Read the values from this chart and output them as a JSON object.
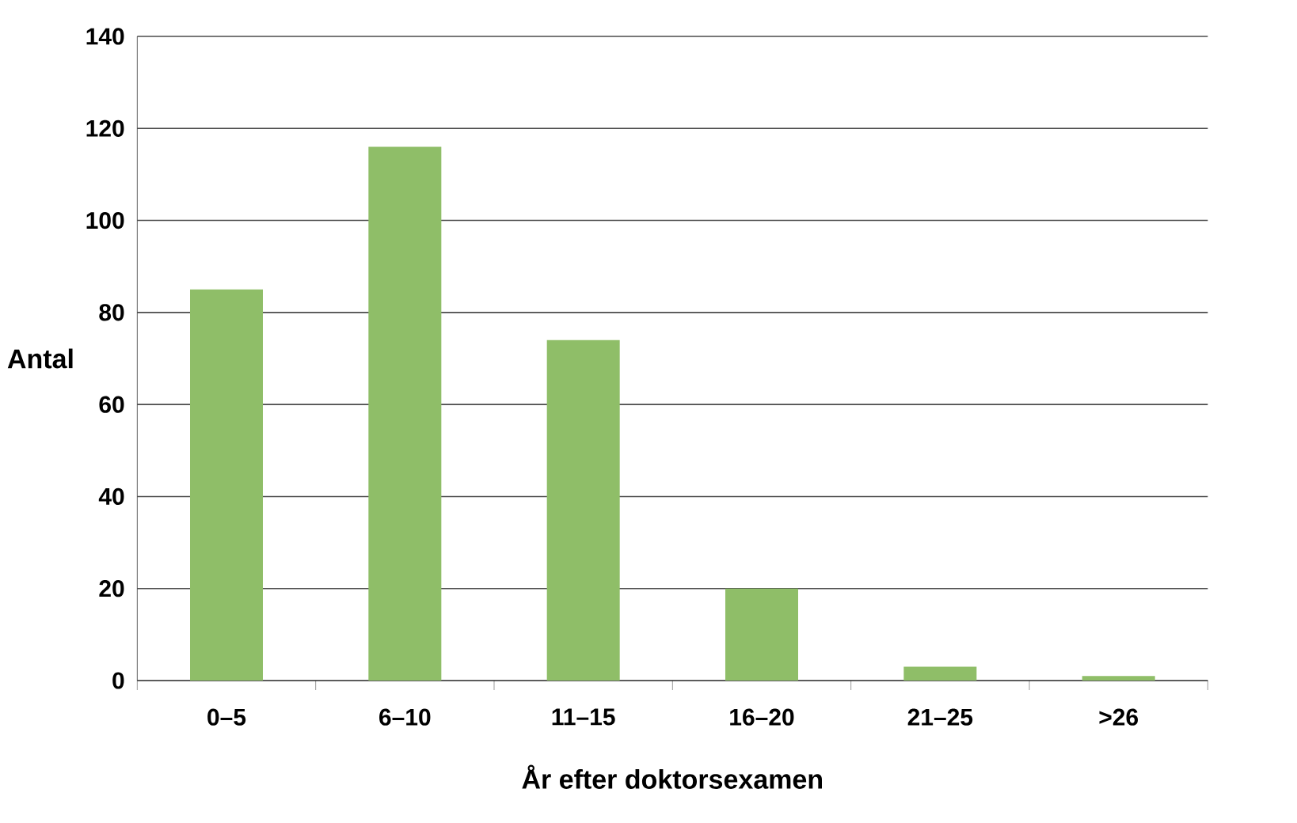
{
  "chart_data": {
    "type": "bar",
    "xlabel": "År efter doktorsexamen",
    "ylabel": "Antal",
    "categories": [
      "0–5",
      "6–10",
      "11–15",
      "16–20",
      "21–25",
      ">26"
    ],
    "values": [
      85,
      116,
      74,
      20,
      3,
      1
    ],
    "color": "#8fbe68",
    "ylim": [
      0,
      140
    ],
    "yticks": [
      0,
      20,
      40,
      60,
      80,
      100,
      120,
      140
    ],
    "grid": "y"
  }
}
